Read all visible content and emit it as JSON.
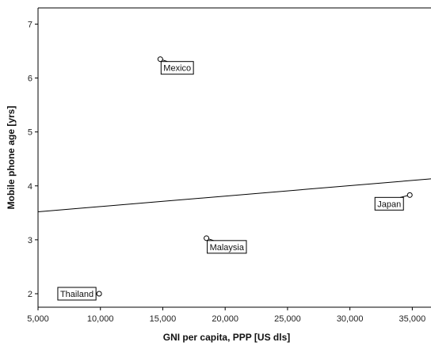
{
  "chart_data": {
    "type": "scatter",
    "xlabel": "GNI per capita, PPP [US dls]",
    "ylabel": "Mobile phone age [yrs]",
    "xlim": [
      5000,
      36500
    ],
    "ylim": [
      1.75,
      7.3
    ],
    "x_ticks": [
      5000,
      10000,
      15000,
      20000,
      25000,
      30000,
      35000
    ],
    "x_tick_labels": [
      "5,000",
      "10,000",
      "15,000",
      "20,000",
      "25,000",
      "30,000",
      "35,000"
    ],
    "y_ticks": [
      2,
      3,
      4,
      5,
      6,
      7
    ],
    "y_tick_labels": [
      "2",
      "3",
      "4",
      "5",
      "6",
      "7"
    ],
    "grid": false,
    "points": [
      {
        "label": "Mexico",
        "x": 14800,
        "y": 6.35,
        "label_side": "below-right"
      },
      {
        "label": "Malaysia",
        "x": 18500,
        "y": 3.03,
        "label_side": "below-right"
      },
      {
        "label": "Japan",
        "x": 34800,
        "y": 3.83,
        "label_side": "below-left"
      },
      {
        "label": "Thailand",
        "x": 9900,
        "y": 2.0,
        "label_side": "left"
      }
    ],
    "fit_line": {
      "x": [
        5000,
        36500
      ],
      "y": [
        3.52,
        4.13
      ]
    },
    "colors": {
      "line": "#000000",
      "point": "#000000"
    }
  }
}
